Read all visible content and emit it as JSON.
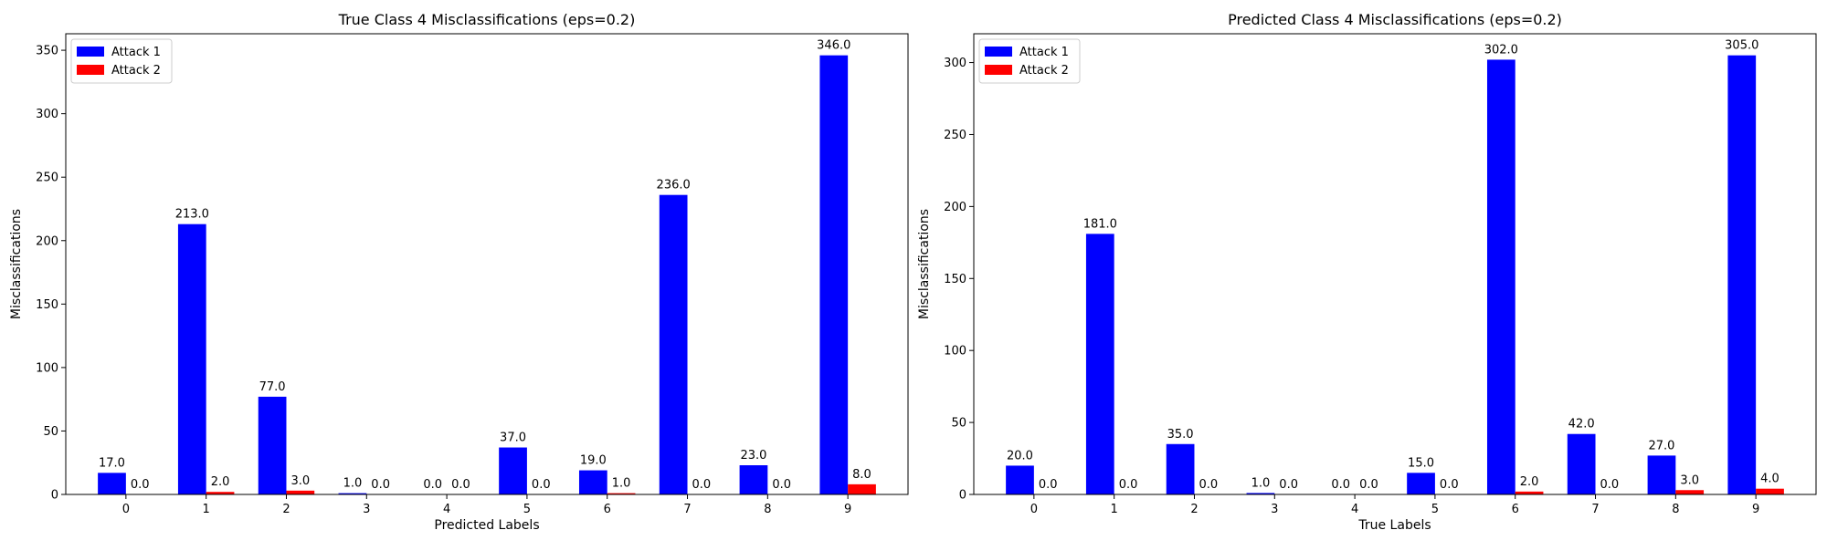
{
  "chart_data": [
    {
      "type": "bar",
      "title": "True Class 4 Misclassifications (eps=0.2)",
      "xlabel": "Predicted Labels",
      "ylabel": "Misclassifications",
      "categories": [
        "0",
        "1",
        "2",
        "3",
        "4",
        "5",
        "6",
        "7",
        "8",
        "9"
      ],
      "ylim": [
        0,
        363
      ],
      "yticks": [
        0,
        50,
        100,
        150,
        200,
        250,
        300,
        350
      ],
      "legend_position": "top-left",
      "grid": false,
      "series": [
        {
          "name": "Attack 1",
          "color": "#0000ff",
          "values": [
            17,
            213,
            77,
            1,
            0,
            37,
            19,
            236,
            23,
            346
          ],
          "labels": [
            "17.0",
            "213.0",
            "77.0",
            "1.0",
            "0.0",
            "37.0",
            "19.0",
            "236.0",
            "23.0",
            "346.0"
          ]
        },
        {
          "name": "Attack 2",
          "color": "#ff0000",
          "values": [
            0,
            2,
            3,
            0,
            0,
            0,
            1,
            0,
            0,
            8
          ],
          "labels": [
            "0.0",
            "2.0",
            "3.0",
            "0.0",
            "0.0",
            "0.0",
            "1.0",
            "0.0",
            "0.0",
            "8.0"
          ]
        }
      ]
    },
    {
      "type": "bar",
      "title": "Predicted Class 4 Misclassifications (eps=0.2)",
      "xlabel": "True Labels",
      "ylabel": "Misclassifications",
      "categories": [
        "0",
        "1",
        "2",
        "3",
        "4",
        "5",
        "6",
        "7",
        "8",
        "9"
      ],
      "ylim": [
        0,
        320
      ],
      "yticks": [
        0,
        50,
        100,
        150,
        200,
        250,
        300
      ],
      "legend_position": "top-left",
      "grid": false,
      "series": [
        {
          "name": "Attack 1",
          "color": "#0000ff",
          "values": [
            20,
            181,
            35,
            1,
            0,
            15,
            302,
            42,
            27,
            305
          ],
          "labels": [
            "20.0",
            "181.0",
            "35.0",
            "1.0",
            "0.0",
            "15.0",
            "302.0",
            "42.0",
            "27.0",
            "305.0"
          ]
        },
        {
          "name": "Attack 2",
          "color": "#ff0000",
          "values": [
            0,
            0,
            0,
            0,
            0,
            0,
            2,
            0,
            3,
            4
          ],
          "labels": [
            "0.0",
            "0.0",
            "0.0",
            "0.0",
            "0.0",
            "0.0",
            "2.0",
            "0.0",
            "3.0",
            "4.0"
          ]
        }
      ]
    }
  ]
}
